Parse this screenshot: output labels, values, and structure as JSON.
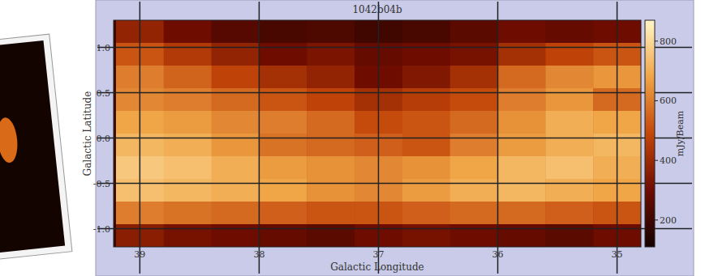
{
  "chart_data": {
    "type": "heatmap",
    "title": "1042b04b",
    "x_label": "Galactic Longitude",
    "y_label": "Galactic Latitude",
    "xlim": [
      39.22,
      34.8
    ],
    "ylim": [
      -1.2,
      1.3
    ],
    "xticks": [
      39,
      38,
      37,
      36,
      35
    ],
    "yticks": [
      {
        "value": 1.0,
        "label": "1.0"
      },
      0.5,
      {
        "value": 0.0,
        "label": "0.0"
      },
      -0.5,
      {
        "value": -1.0,
        "label": "-1.0"
      }
    ],
    "grid": true,
    "x": [
      39.0,
      38.6,
      38.2,
      37.8,
      37.4,
      37.0,
      36.6,
      36.2,
      35.8,
      35.4,
      35.0
    ],
    "y": [
      1.175,
      0.925,
      0.675,
      0.425,
      0.175,
      -0.075,
      -0.325,
      -0.575,
      -0.825,
      -1.075
    ],
    "values": [
      [
        380,
        300,
        250,
        220,
        230,
        200,
        220,
        260,
        300,
        280,
        300
      ],
      [
        520,
        450,
        380,
        300,
        330,
        280,
        300,
        320,
        420,
        480,
        520
      ],
      [
        600,
        550,
        480,
        420,
        380,
        300,
        340,
        420,
        560,
        620,
        650
      ],
      [
        620,
        600,
        560,
        520,
        480,
        420,
        460,
        500,
        600,
        650,
        560
      ],
      [
        680,
        660,
        620,
        600,
        560,
        500,
        520,
        560,
        640,
        700,
        680
      ],
      [
        720,
        700,
        650,
        580,
        560,
        540,
        520,
        600,
        660,
        700,
        720
      ],
      [
        760,
        740,
        700,
        660,
        640,
        620,
        640,
        680,
        720,
        740,
        700
      ],
      [
        740,
        720,
        700,
        680,
        640,
        620,
        660,
        700,
        720,
        700,
        680
      ],
      [
        600,
        580,
        560,
        540,
        520,
        520,
        540,
        560,
        560,
        540,
        520
      ],
      [
        360,
        320,
        300,
        280,
        260,
        300,
        320,
        300,
        280,
        260,
        300
      ]
    ],
    "colorbar": {
      "label": "mJy/Beam",
      "range": [
        110,
        870
      ],
      "ticks": [
        200,
        400,
        600,
        800
      ]
    }
  }
}
